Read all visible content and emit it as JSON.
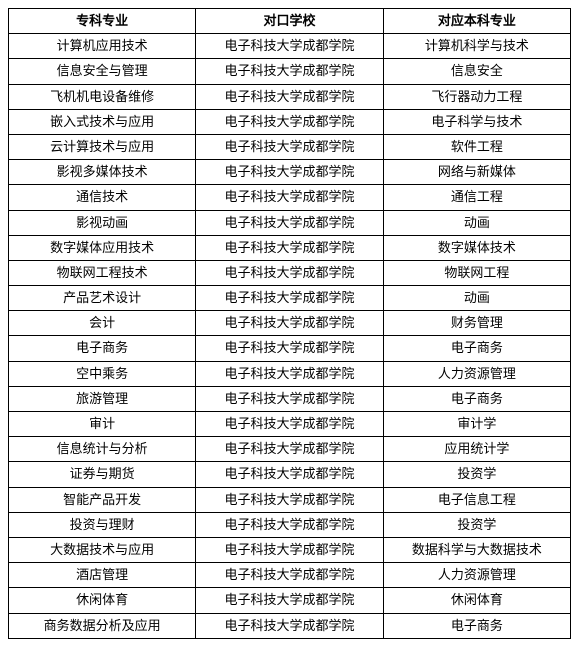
{
  "table": {
    "type": "table",
    "headers": [
      "专科专业",
      "对口学校",
      "对应本科专业"
    ],
    "rows": [
      [
        "计算机应用技术",
        "电子科技大学成都学院",
        "计算机科学与技术"
      ],
      [
        "信息安全与管理",
        "电子科技大学成都学院",
        "信息安全"
      ],
      [
        "飞机机电设备维修",
        "电子科技大学成都学院",
        "飞行器动力工程"
      ],
      [
        "嵌入式技术与应用",
        "电子科技大学成都学院",
        "电子科学与技术"
      ],
      [
        "云计算技术与应用",
        "电子科技大学成都学院",
        "软件工程"
      ],
      [
        "影视多媒体技术",
        "电子科技大学成都学院",
        "网络与新媒体"
      ],
      [
        "通信技术",
        "电子科技大学成都学院",
        "通信工程"
      ],
      [
        "影视动画",
        "电子科技大学成都学院",
        "动画"
      ],
      [
        "数字媒体应用技术",
        "电子科技大学成都学院",
        "数字媒体技术"
      ],
      [
        "物联网工程技术",
        "电子科技大学成都学院",
        "物联网工程"
      ],
      [
        "产品艺术设计",
        "电子科技大学成都学院",
        "动画"
      ],
      [
        "会计",
        "电子科技大学成都学院",
        "财务管理"
      ],
      [
        "电子商务",
        "电子科技大学成都学院",
        "电子商务"
      ],
      [
        "空中乘务",
        "电子科技大学成都学院",
        "人力资源管理"
      ],
      [
        "旅游管理",
        "电子科技大学成都学院",
        "电子商务"
      ],
      [
        "审计",
        "电子科技大学成都学院",
        "审计学"
      ],
      [
        "信息统计与分析",
        "电子科技大学成都学院",
        "应用统计学"
      ],
      [
        "证券与期货",
        "电子科技大学成都学院",
        "投资学"
      ],
      [
        "智能产品开发",
        "电子科技大学成都学院",
        "电子信息工程"
      ],
      [
        "投资与理财",
        "电子科技大学成都学院",
        "投资学"
      ],
      [
        "大数据技术与应用",
        "电子科技大学成都学院",
        "数据科学与大数据技术"
      ],
      [
        "酒店管理",
        "电子科技大学成都学院",
        "人力资源管理"
      ],
      [
        "休闲体育",
        "电子科技大学成都学院",
        "休闲体育"
      ],
      [
        "商务数据分析及应用",
        "电子科技大学成都学院",
        "电子商务"
      ]
    ],
    "border_color": "#000000",
    "background_color": "#ffffff",
    "text_color": "#000000",
    "header_fontweight": "bold",
    "fontsize": 13,
    "column_widths_pct": [
      33.3,
      33.4,
      33.3
    ]
  }
}
